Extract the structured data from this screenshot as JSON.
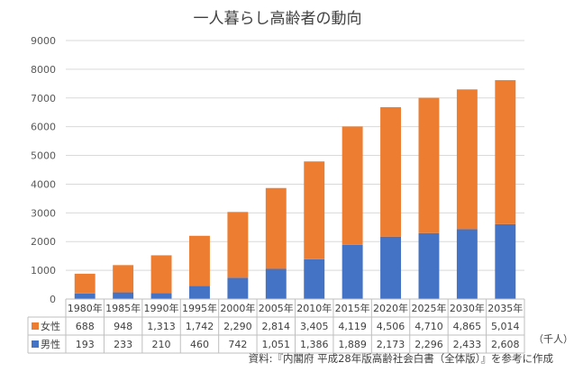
{
  "chart_data": {
    "type": "bar",
    "stacked": true,
    "title": "一人暮らし高齢者の動向",
    "categories": [
      "1980年",
      "1985年",
      "1990年",
      "1995年",
      "2000年",
      "2005年",
      "2010年",
      "2015年",
      "2020年",
      "2025年",
      "2030年",
      "2035年"
    ],
    "series": [
      {
        "name": "女性",
        "values": [
          688,
          948,
          1313,
          1742,
          2290,
          2814,
          3405,
          4119,
          4506,
          4710,
          4865,
          5014
        ],
        "labels": [
          "688",
          "948",
          "1,313",
          "1,742",
          "2,290",
          "2,814",
          "3,405",
          "4,119",
          "4,506",
          "4,710",
          "4,865",
          "5,014"
        ],
        "color": "#ed7d31"
      },
      {
        "name": "男性",
        "values": [
          193,
          233,
          210,
          460,
          742,
          1051,
          1386,
          1889,
          2173,
          2296,
          2433,
          2608
        ],
        "labels": [
          "193",
          "233",
          "210",
          "460",
          "742",
          "1,051",
          "1,386",
          "1,889",
          "2,173",
          "2,296",
          "2,433",
          "2,608"
        ],
        "color": "#4472c4"
      }
    ],
    "ylim": [
      0,
      9000
    ],
    "yticks": [
      "0",
      "1000",
      "2000",
      "3000",
      "4000",
      "5000",
      "6000",
      "7000",
      "8000",
      "9000"
    ],
    "grid": true,
    "legend": "data-table",
    "unit": "（千人）",
    "source": "資料:『内閣府 平成28年版高齢社会白書（全体版）』を参考に作成"
  }
}
